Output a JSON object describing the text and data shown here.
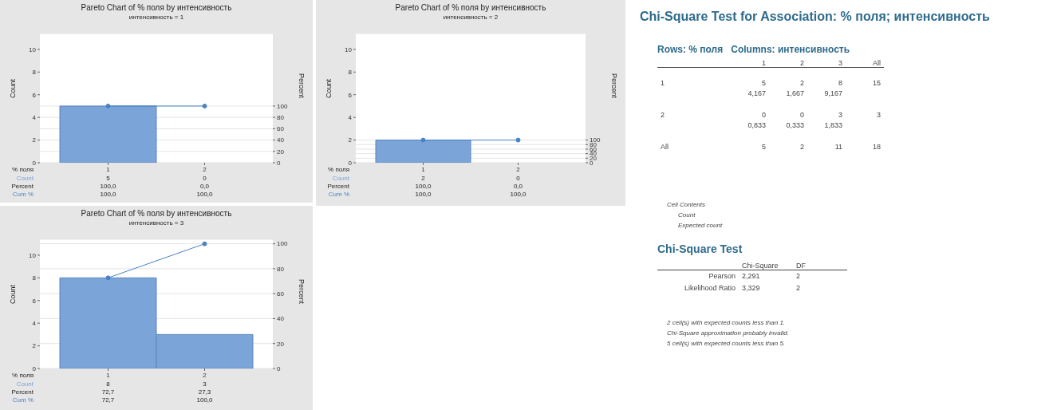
{
  "chart_data": [
    {
      "type": "bar",
      "title": "Pareto Chart of % поля by интенсивность",
      "subtitle": "интенсивность = 1",
      "xlabel": "% поля",
      "ylabel": "Count",
      "y2label": "Percent",
      "categories": [
        "1",
        "2"
      ],
      "ylim": [
        0,
        11.4
      ],
      "yticks": [
        0,
        2,
        4,
        6,
        8,
        10
      ],
      "y2lim": [
        0,
        228
      ],
      "y2ticks": [
        0,
        20,
        40,
        60,
        80,
        100
      ],
      "grid": true,
      "marker": "circle",
      "series": [
        {
          "name": "Count",
          "type": "bar",
          "color": "#7ba5d8",
          "values": [
            5,
            0
          ],
          "value_labels": [
            "5",
            "0"
          ]
        },
        {
          "name": "Cum %",
          "type": "line",
          "axis": "y2",
          "color": "#4a82c4",
          "values": [
            100,
            100
          ],
          "value_labels": [
            "100,0",
            "100,0"
          ]
        }
      ],
      "annotations": [
        "Percent",
        "100,0",
        "0,0"
      ]
    },
    {
      "type": "bar",
      "title": "Pareto Chart of % поля by интенсивность",
      "subtitle": "интенсивность = 2",
      "xlabel": "% поля",
      "ylabel": "Count",
      "y2label": "Percent",
      "categories": [
        "1",
        "2"
      ],
      "ylim": [
        0,
        11.4
      ],
      "yticks": [
        0,
        2,
        4,
        6,
        8,
        10
      ],
      "y2lim": [
        0,
        570
      ],
      "y2ticks": [
        0,
        20,
        40,
        60,
        80,
        100
      ],
      "grid": true,
      "marker": "circle",
      "series": [
        {
          "name": "Count",
          "type": "bar",
          "color": "#7ba5d8",
          "values": [
            2,
            0
          ],
          "value_labels": [
            "2",
            "0"
          ]
        },
        {
          "name": "Cum %",
          "type": "line",
          "axis": "y2",
          "color": "#4a82c4",
          "values": [
            100,
            100
          ],
          "value_labels": [
            "100,0",
            "100,0"
          ]
        }
      ],
      "annotations": [
        "Percent",
        "100,0",
        "0,0"
      ]
    },
    {
      "type": "bar",
      "title": "Pareto Chart of % поля by интенсивность",
      "subtitle": "интенсивность = 3",
      "xlabel": "% поля",
      "ylabel": "Count",
      "y2label": "Percent",
      "categories": [
        "1",
        "2"
      ],
      "ylim": [
        0,
        11.4
      ],
      "yticks": [
        0,
        2,
        4,
        6,
        8,
        10
      ],
      "y2lim": [
        0,
        103.6
      ],
      "y2ticks": [
        0,
        20,
        40,
        60,
        80,
        100
      ],
      "grid": true,
      "marker": "circle",
      "series": [
        {
          "name": "Count",
          "type": "bar",
          "color": "#7ba5d8",
          "values": [
            8,
            3
          ],
          "value_labels": [
            "8",
            "3"
          ]
        },
        {
          "name": "Cum %",
          "type": "line",
          "axis": "y2",
          "color": "#4a82c4",
          "values": [
            72.7,
            100
          ],
          "value_labels": [
            "72,7",
            "100,0"
          ]
        }
      ],
      "annotations": [
        "Percent",
        "72,7",
        "27,3"
      ]
    },
    {
      "type": "other",
      "title": "Chi-Square Test for Association: % поля; интенсивность",
      "subtitle": "Rows: % поля   Columns: интенсивность",
      "categories": [
        "1",
        "2",
        "3",
        "All"
      ],
      "y_categories": [
        "1",
        null,
        "2",
        null,
        "All"
      ],
      "cell_labels": [
        [
          "5",
          "2",
          "8",
          "15"
        ],
        [
          "4,167",
          "1,667",
          "9,167",
          null
        ],
        [
          "0",
          "0",
          "3",
          "3"
        ],
        [
          "0,833",
          "0,333",
          "1,833",
          null
        ],
        [
          "5",
          "2",
          "11",
          "18"
        ]
      ],
      "annotations": [
        "Cell Contents",
        "Count",
        "Expected count"
      ]
    },
    {
      "type": "other",
      "title": "Chi-Square Test",
      "categories": [
        "Chi-Square",
        "DF"
      ],
      "y_categories": [
        "Pearson",
        "Likelihood Ratio"
      ],
      "cell_labels": [
        [
          "2,291",
          "2"
        ],
        [
          "3,329",
          "2"
        ]
      ],
      "annotations": [
        "2 cell(s) with expected counts less than 1.",
        "Chi-Square approximation probably invalid.",
        "5 cell(s) with expected counts less than 5."
      ]
    }
  ]
}
